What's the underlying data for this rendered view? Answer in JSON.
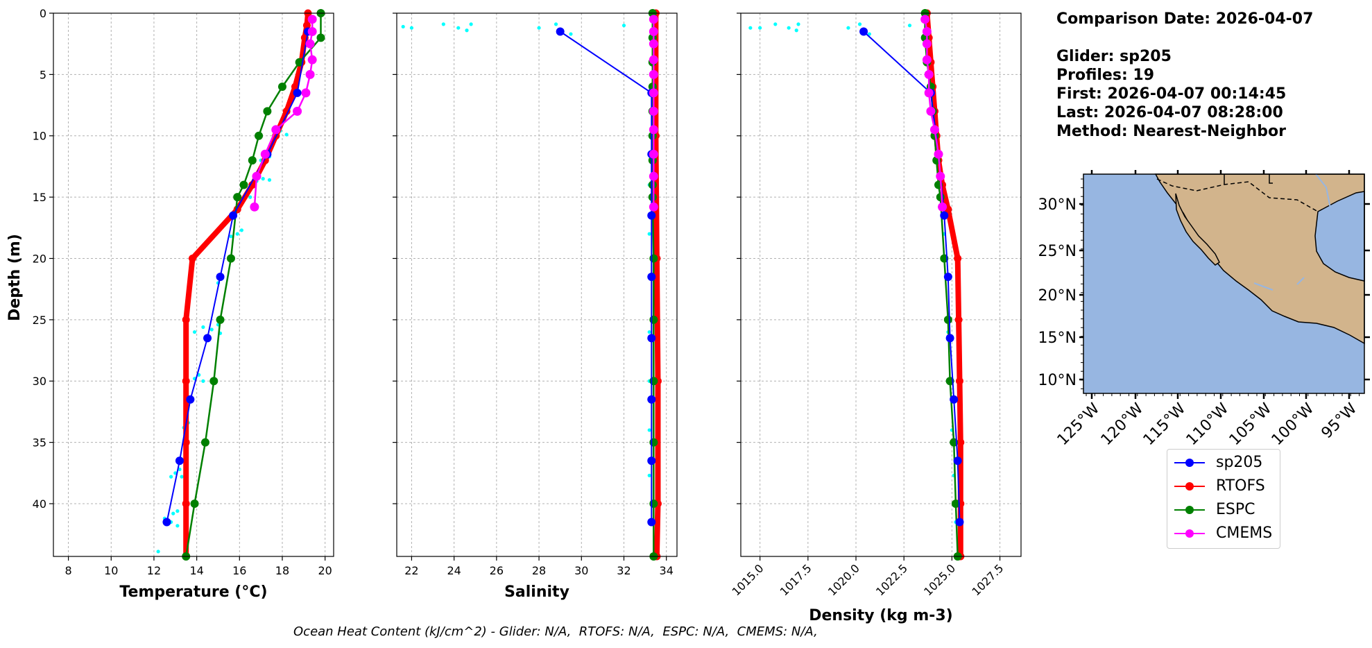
{
  "info": {
    "comparison_date": "Comparison Date: 2026-04-07",
    "glider": "Glider: sp205",
    "profiles": "Profiles: 19",
    "first": "First: 2026-04-07 00:14:45",
    "last": "Last: 2026-04-07 08:28:00",
    "method": "Method: Nearest-Neighbor"
  },
  "footer": "Ocean Heat Content (kJ/cm^2) - Glider: N/A,  RTOFS: N/A,  ESPC: N/A,  CMEMS: N/A,",
  "legend": [
    {
      "name": "sp205",
      "color": "#0000ff"
    },
    {
      "name": "RTOFS",
      "color": "#ff0000"
    },
    {
      "name": "ESPC",
      "color": "#008000"
    },
    {
      "name": "CMEMS",
      "color": "#ff00ff"
    }
  ],
  "colors": {
    "raw": "#00ffff",
    "ocean": "#97b6e1",
    "land": "#d2b48c"
  },
  "chart_data": [
    {
      "type": "line",
      "xlabel": "Temperature (°C)",
      "ylabel": "Depth (m)",
      "xlim": [
        7.3,
        20.4
      ],
      "ylim": [
        44.3,
        0
      ],
      "xticks": [
        8,
        10,
        12,
        14,
        16,
        18,
        20
      ],
      "yticks": [
        0,
        5,
        10,
        15,
        20,
        25,
        30,
        35,
        40
      ],
      "grid": true,
      "raw": [
        [
          12.2,
          43.9
        ],
        [
          12.5,
          41.2
        ],
        [
          12.8,
          41.5
        ],
        [
          13.1,
          41.8
        ],
        [
          12.9,
          40.8
        ],
        [
          13.1,
          40.6
        ],
        [
          12.8,
          37.8
        ],
        [
          13.0,
          37.5
        ],
        [
          13.2,
          37.2
        ],
        [
          13.3,
          37.8
        ],
        [
          13.4,
          33.8
        ],
        [
          13.6,
          33.4
        ],
        [
          13.5,
          34.0
        ],
        [
          13.9,
          29.8
        ],
        [
          14.1,
          29.5
        ],
        [
          14.3,
          30.0
        ],
        [
          13.9,
          26.0
        ],
        [
          14.3,
          25.6
        ],
        [
          14.7,
          25.8
        ],
        [
          15.0,
          25.4
        ],
        [
          15.1,
          26.1
        ],
        [
          15.0,
          22.0
        ],
        [
          15.2,
          21.6
        ],
        [
          15.6,
          18.2
        ],
        [
          15.9,
          18.0
        ],
        [
          16.1,
          17.7
        ],
        [
          16.5,
          15.0
        ],
        [
          16.8,
          13.7
        ],
        [
          17.1,
          13.5
        ],
        [
          17.4,
          13.6
        ],
        [
          17.0,
          12.0
        ],
        [
          17.4,
          11.7
        ],
        [
          17.7,
          9.8
        ],
        [
          17.9,
          9.6
        ],
        [
          18.2,
          9.9
        ]
      ],
      "series": [
        {
          "name": "sp205",
          "points": [
            [
              12.6,
              41.5
            ],
            [
              13.2,
              36.5
            ],
            [
              13.7,
              31.5
            ],
            [
              14.5,
              26.5
            ],
            [
              15.1,
              21.5
            ],
            [
              15.7,
              16.5
            ],
            [
              17.3,
              11.5
            ],
            [
              18.7,
              6.5
            ],
            [
              19.2,
              1.5
            ]
          ]
        },
        {
          "name": "RTOFS",
          "points": [
            [
              19.2,
              0
            ],
            [
              19.15,
              1
            ],
            [
              19.05,
              2
            ],
            [
              18.9,
              4
            ],
            [
              18.6,
              6
            ],
            [
              18.2,
              8
            ],
            [
              17.7,
              10
            ],
            [
              17.2,
              12
            ],
            [
              16.6,
              14
            ],
            [
              15.9,
              16
            ],
            [
              13.8,
              20
            ],
            [
              13.5,
              25
            ],
            [
              13.5,
              30
            ],
            [
              13.5,
              35
            ],
            [
              13.5,
              40
            ],
            [
              13.5,
              44.3
            ]
          ]
        },
        {
          "name": "ESPC",
          "points": [
            [
              19.8,
              0
            ],
            [
              19.8,
              2
            ],
            [
              18.8,
              4
            ],
            [
              18.0,
              6
            ],
            [
              17.3,
              8
            ],
            [
              16.9,
              10
            ],
            [
              16.6,
              12
            ],
            [
              16.2,
              14
            ],
            [
              15.9,
              15
            ],
            [
              15.6,
              20
            ],
            [
              15.1,
              25
            ],
            [
              14.8,
              30
            ],
            [
              14.4,
              35
            ],
            [
              13.9,
              40
            ],
            [
              13.5,
              44.3
            ]
          ]
        },
        {
          "name": "CMEMS",
          "points": [
            [
              19.4,
              0.5
            ],
            [
              19.4,
              1.5
            ],
            [
              19.3,
              2.5
            ],
            [
              19.4,
              3.8
            ],
            [
              19.3,
              5
            ],
            [
              19.1,
              6.5
            ],
            [
              18.7,
              8
            ],
            [
              17.7,
              9.5
            ],
            [
              17.2,
              11.5
            ],
            [
              16.8,
              13.3
            ],
            [
              16.7,
              15.8
            ]
          ]
        }
      ]
    },
    {
      "type": "line",
      "xlabel": "Salinity",
      "xlim": [
        21.3,
        34.5
      ],
      "ylim": [
        44.3,
        0
      ],
      "xticks": [
        22,
        24,
        26,
        28,
        30,
        32,
        34
      ],
      "grid": true,
      "raw": [
        [
          21.6,
          1.1
        ],
        [
          22.0,
          1.2
        ],
        [
          23.5,
          0.9
        ],
        [
          24.2,
          1.2
        ],
        [
          24.6,
          1.4
        ],
        [
          24.8,
          0.9
        ],
        [
          28.0,
          1.2
        ],
        [
          28.8,
          0.9
        ],
        [
          29.5,
          1.7
        ],
        [
          32.0,
          1.0
        ],
        [
          33.2,
          14.0
        ],
        [
          33.2,
          18.0
        ],
        [
          33.2,
          21.5
        ],
        [
          33.2,
          26.0
        ],
        [
          33.2,
          30.0
        ],
        [
          33.2,
          34.0
        ],
        [
          33.2,
          37.7
        ],
        [
          33.2,
          41.5
        ]
      ],
      "series": [
        {
          "name": "sp205",
          "points": [
            [
              29.0,
              1.5
            ],
            [
              33.3,
              6.5
            ],
            [
              33.3,
              11.5
            ],
            [
              33.3,
              16.5
            ],
            [
              33.3,
              21.5
            ],
            [
              33.3,
              26.5
            ],
            [
              33.3,
              31.5
            ],
            [
              33.3,
              36.5
            ],
            [
              33.3,
              41.5
            ]
          ]
        },
        {
          "name": "RTOFS",
          "points": [
            [
              33.5,
              0
            ],
            [
              33.5,
              10
            ],
            [
              33.55,
              20
            ],
            [
              33.6,
              30
            ],
            [
              33.6,
              40
            ],
            [
              33.55,
              44.3
            ]
          ]
        },
        {
          "name": "ESPC",
          "points": [
            [
              33.35,
              0
            ],
            [
              33.35,
              2
            ],
            [
              33.35,
              4
            ],
            [
              33.35,
              6
            ],
            [
              33.35,
              8
            ],
            [
              33.35,
              10
            ],
            [
              33.35,
              12
            ],
            [
              33.35,
              14
            ],
            [
              33.35,
              15
            ],
            [
              33.4,
              20
            ],
            [
              33.4,
              25
            ],
            [
              33.4,
              30
            ],
            [
              33.4,
              35
            ],
            [
              33.4,
              40
            ],
            [
              33.4,
              44.3
            ]
          ]
        },
        {
          "name": "CMEMS",
          "points": [
            [
              33.4,
              0.5
            ],
            [
              33.4,
              1.5
            ],
            [
              33.4,
              2.5
            ],
            [
              33.4,
              3.8
            ],
            [
              33.4,
              5
            ],
            [
              33.4,
              6.5
            ],
            [
              33.4,
              8
            ],
            [
              33.4,
              9.5
            ],
            [
              33.4,
              11.5
            ],
            [
              33.4,
              13.3
            ],
            [
              33.4,
              15.8
            ]
          ]
        }
      ]
    },
    {
      "type": "line",
      "xlabel": "Density (kg m-3)",
      "xlim": [
        1014.0,
        1028.6
      ],
      "ylim": [
        44.3,
        0
      ],
      "xticks": [
        1015.0,
        1017.5,
        1020.0,
        1022.5,
        1025.0,
        1027.5
      ],
      "xticklabels": [
        "1015.0",
        "1017.5",
        "1020.0",
        "1022.5",
        "1025.0",
        "1027.5"
      ],
      "grid": true,
      "raw": [
        [
          1014.5,
          1.2
        ],
        [
          1015.0,
          1.2
        ],
        [
          1015.8,
          0.9
        ],
        [
          1016.5,
          1.2
        ],
        [
          1016.9,
          1.4
        ],
        [
          1017.0,
          0.9
        ],
        [
          1019.6,
          1.2
        ],
        [
          1020.2,
          0.9
        ],
        [
          1020.7,
          1.7
        ],
        [
          1022.8,
          1.0
        ],
        [
          1024.4,
          14.0
        ],
        [
          1024.6,
          18.0
        ],
        [
          1024.7,
          21.5
        ],
        [
          1024.8,
          26.0
        ],
        [
          1024.9,
          30.0
        ],
        [
          1025.0,
          34.0
        ],
        [
          1025.1,
          37.7
        ],
        [
          1025.2,
          41.5
        ]
      ],
      "series": [
        {
          "name": "sp205",
          "points": [
            [
              1020.4,
              1.5
            ],
            [
              1023.9,
              6.5
            ],
            [
              1024.3,
              11.5
            ],
            [
              1024.6,
              16.5
            ],
            [
              1024.8,
              21.5
            ],
            [
              1024.9,
              26.5
            ],
            [
              1025.1,
              31.5
            ],
            [
              1025.3,
              36.5
            ],
            [
              1025.4,
              41.5
            ]
          ]
        },
        {
          "name": "RTOFS",
          "points": [
            [
              1023.7,
              0
            ],
            [
              1023.8,
              2
            ],
            [
              1023.9,
              4
            ],
            [
              1024.0,
              6
            ],
            [
              1024.1,
              8
            ],
            [
              1024.2,
              10
            ],
            [
              1024.3,
              12
            ],
            [
              1024.5,
              14
            ],
            [
              1024.8,
              16
            ],
            [
              1025.3,
              20
            ],
            [
              1025.35,
              25
            ],
            [
              1025.4,
              30
            ],
            [
              1025.45,
              35
            ],
            [
              1025.45,
              40
            ],
            [
              1025.45,
              44.3
            ]
          ]
        },
        {
          "name": "ESPC",
          "points": [
            [
              1023.6,
              0
            ],
            [
              1023.6,
              2
            ],
            [
              1023.7,
              4
            ],
            [
              1023.9,
              6
            ],
            [
              1024.0,
              8
            ],
            [
              1024.1,
              10
            ],
            [
              1024.2,
              12
            ],
            [
              1024.3,
              14
            ],
            [
              1024.4,
              15
            ],
            [
              1024.6,
              20
            ],
            [
              1024.8,
              25
            ],
            [
              1024.9,
              30
            ],
            [
              1025.1,
              35
            ],
            [
              1025.2,
              40
            ],
            [
              1025.3,
              44.3
            ]
          ]
        },
        {
          "name": "CMEMS",
          "points": [
            [
              1023.6,
              0.5
            ],
            [
              1023.7,
              1.5
            ],
            [
              1023.7,
              2.5
            ],
            [
              1023.7,
              3.8
            ],
            [
              1023.8,
              5
            ],
            [
              1023.8,
              6.5
            ],
            [
              1023.9,
              8
            ],
            [
              1024.1,
              9.5
            ],
            [
              1024.3,
              11.5
            ],
            [
              1024.4,
              13.3
            ],
            [
              1024.5,
              15.8
            ]
          ]
        }
      ]
    }
  ],
  "map": {
    "lat_ticks": [
      "30°N",
      "25°N",
      "20°N",
      "15°N",
      "10°N"
    ],
    "lon_ticks": [
      "125°W",
      "120°W",
      "115°W",
      "110°W",
      "105°W",
      "100°W",
      "95°W"
    ]
  }
}
